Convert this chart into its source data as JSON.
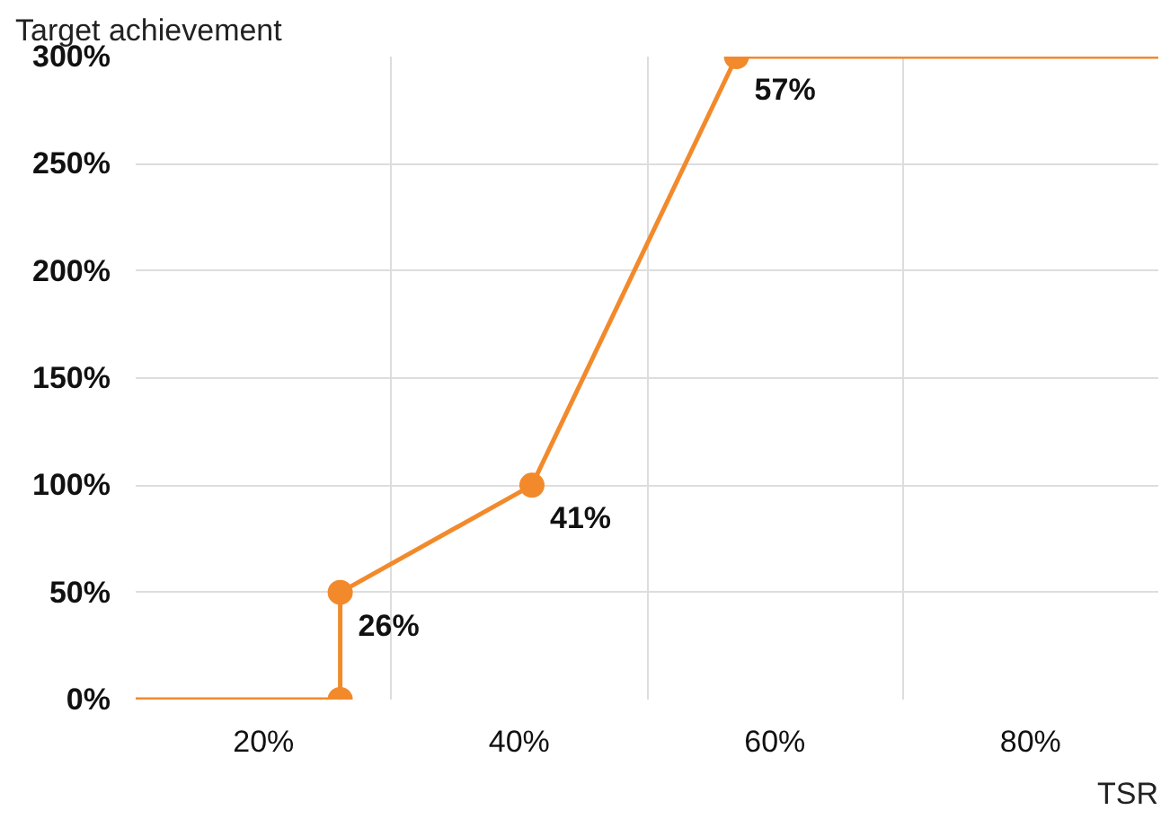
{
  "chart_data": {
    "type": "line",
    "ylabel": "Target achievement",
    "xlabel": "TSR",
    "series": [
      {
        "color": "#f28a2c",
        "x": [
          10,
          26,
          26,
          41,
          57,
          90
        ],
        "values": [
          0,
          0,
          50,
          100,
          300,
          300
        ],
        "marker": "none"
      },
      {
        "type": "scatter",
        "color": "#f28a2c",
        "x": [
          26,
          26,
          41,
          57
        ],
        "values": [
          0,
          50,
          100,
          300
        ],
        "marker": "circle"
      }
    ],
    "annotations": [
      {
        "text": "26%",
        "x": 26,
        "y": 50
      },
      {
        "text": "41%",
        "x": 41,
        "y": 100
      },
      {
        "text": "57%",
        "x": 57,
        "y": 300
      }
    ],
    "xlim": [
      10,
      90
    ],
    "ylim": [
      0,
      300
    ],
    "xticks": [
      {
        "value": 20,
        "label": "20%"
      },
      {
        "value": 30,
        "label": null
      },
      {
        "value": 40,
        "label": "40%"
      },
      {
        "value": 50,
        "label": null
      },
      {
        "value": 60,
        "label": "60%"
      },
      {
        "value": 70,
        "label": null
      },
      {
        "value": 80,
        "label": "80%"
      }
    ],
    "yticks": [
      {
        "value": 0,
        "label": "0%"
      },
      {
        "value": 50,
        "label": "50%"
      },
      {
        "value": 100,
        "label": "100%"
      },
      {
        "value": 150,
        "label": "150%"
      },
      {
        "value": 200,
        "label": "200%"
      },
      {
        "value": 250,
        "label": "250%"
      },
      {
        "value": 300,
        "label": "300%"
      }
    ],
    "grid": true,
    "line_style": "solid"
  }
}
